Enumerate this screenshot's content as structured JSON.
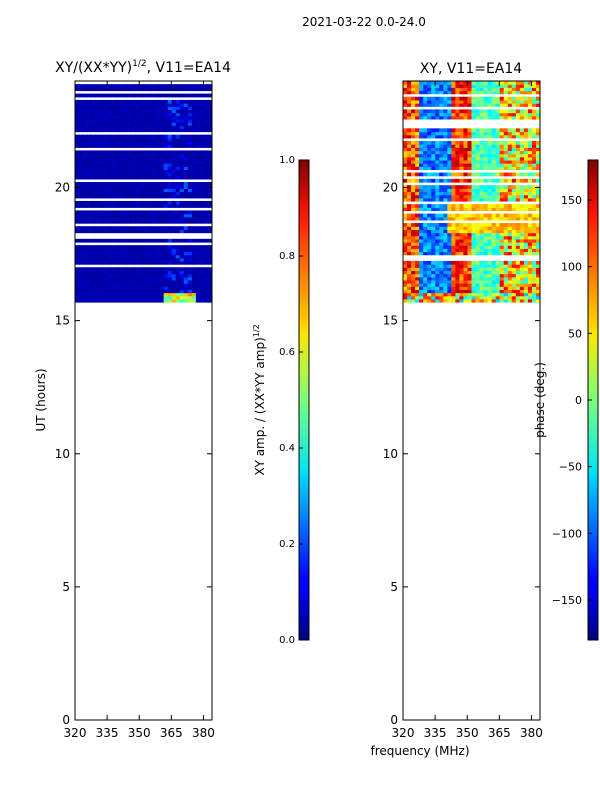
{
  "figure": {
    "suptitle": "2021-03-22 0.0-24.0",
    "shared_xlabel": "frequency (MHz)"
  },
  "chart_data": [
    {
      "type": "heatmap",
      "title_main": "XY/(XX*YY)",
      "title_sup": "1/2",
      "title_tail": ", V11=EA14",
      "xlabel": "",
      "ylabel": "UT (hours)",
      "xlim": [
        320,
        384
      ],
      "ylim": [
        0,
        24
      ],
      "xticks": [
        320,
        335,
        350,
        365,
        380
      ],
      "yticks": [
        0,
        5,
        10,
        15,
        20
      ],
      "data_extent_hours": [
        15.7,
        24.0
      ],
      "colorbar": {
        "label_main": "XY amp. / (XX*YY amp)",
        "label_sup": "1/2",
        "range": [
          0.0,
          1.0
        ],
        "ticks": [
          "0.0",
          "0.2",
          "0.4",
          "0.6",
          "0.8",
          "1.0"
        ],
        "colormap": "jet"
      },
      "description_values": {
        "dominant_value": 0.02,
        "bright_band_mhz": [
          362,
          374
        ]
      }
    },
    {
      "type": "heatmap",
      "title_main": "XY, V11=EA14",
      "xlabel": "",
      "ylabel": "",
      "xlim": [
        320,
        384
      ],
      "ylim": [
        0,
        24
      ],
      "xticks": [
        320,
        335,
        350,
        365,
        380
      ],
      "yticks": [
        0,
        5,
        10,
        15,
        20
      ],
      "data_extent_hours": [
        15.7,
        24.0
      ],
      "colorbar": {
        "label": "phase (deg.)",
        "range": [
          -180,
          180
        ],
        "ticks": [
          "150",
          "100",
          "50",
          "0",
          "−50",
          "−100",
          "−150"
        ],
        "tick_values": [
          150,
          100,
          50,
          0,
          -50,
          -100,
          -150
        ],
        "colormap": "jet"
      }
    }
  ]
}
